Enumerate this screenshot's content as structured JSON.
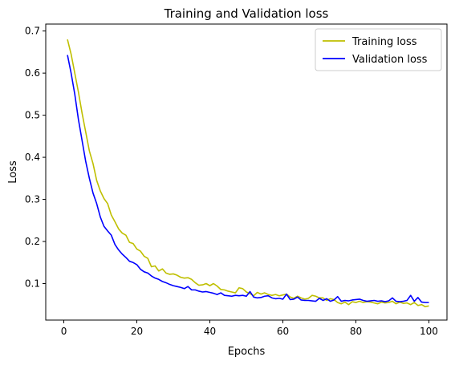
{
  "chart_data": {
    "type": "line",
    "title": "Training and Validation loss",
    "xlabel": "Epochs",
    "ylabel": "Loss",
    "xlim": [
      -4.95,
      104.95
    ],
    "ylim": [
      0.0133,
      0.7165
    ],
    "xticks": [
      0,
      20,
      40,
      60,
      80,
      100
    ],
    "yticks": [
      0.1,
      0.2,
      0.3,
      0.4,
      0.5,
      0.6,
      0.7
    ],
    "grid": false,
    "legend_position": "top-right",
    "x": [
      1,
      2,
      3,
      4,
      5,
      6,
      7,
      8,
      9,
      10,
      11,
      12,
      13,
      14,
      15,
      16,
      17,
      18,
      19,
      20,
      21,
      22,
      23,
      24,
      25,
      26,
      27,
      28,
      29,
      30,
      31,
      32,
      33,
      34,
      35,
      36,
      37,
      38,
      39,
      40,
      41,
      42,
      43,
      44,
      45,
      46,
      47,
      48,
      49,
      50,
      51,
      52,
      53,
      54,
      55,
      56,
      57,
      58,
      59,
      60,
      61,
      62,
      63,
      64,
      65,
      66,
      67,
      68,
      69,
      70,
      71,
      72,
      73,
      74,
      75,
      76,
      77,
      78,
      79,
      80,
      81,
      82,
      83,
      84,
      85,
      86,
      87,
      88,
      89,
      90,
      91,
      92,
      93,
      94,
      95,
      96,
      97,
      98,
      99,
      100
    ],
    "series": [
      {
        "name": "Training loss",
        "color": "#bfbf00",
        "values": [
          0.68,
          0.645,
          0.6,
          0.555,
          0.505,
          0.46,
          0.415,
          0.385,
          0.345,
          0.32,
          0.302,
          0.29,
          0.263,
          0.247,
          0.23,
          0.22,
          0.215,
          0.198,
          0.195,
          0.182,
          0.177,
          0.165,
          0.16,
          0.14,
          0.142,
          0.13,
          0.135,
          0.125,
          0.122,
          0.123,
          0.12,
          0.115,
          0.113,
          0.114,
          0.11,
          0.102,
          0.096,
          0.097,
          0.1,
          0.095,
          0.1,
          0.094,
          0.086,
          0.085,
          0.082,
          0.08,
          0.078,
          0.09,
          0.088,
          0.08,
          0.076,
          0.071,
          0.079,
          0.075,
          0.078,
          0.074,
          0.072,
          0.074,
          0.071,
          0.073,
          0.075,
          0.068,
          0.065,
          0.07,
          0.066,
          0.063,
          0.065,
          0.072,
          0.07,
          0.066,
          0.066,
          0.06,
          0.064,
          0.062,
          0.055,
          0.052,
          0.056,
          0.05,
          0.057,
          0.055,
          0.058,
          0.055,
          0.057,
          0.056,
          0.054,
          0.052,
          0.056,
          0.054,
          0.055,
          0.058,
          0.052,
          0.056,
          0.053,
          0.054,
          0.05,
          0.055,
          0.048,
          0.05,
          0.045,
          0.047
        ]
      },
      {
        "name": "Validation loss",
        "color": "#0000ff",
        "values": [
          0.643,
          0.6,
          0.55,
          0.49,
          0.44,
          0.39,
          0.35,
          0.315,
          0.29,
          0.258,
          0.236,
          0.225,
          0.215,
          0.193,
          0.18,
          0.17,
          0.162,
          0.153,
          0.15,
          0.145,
          0.134,
          0.128,
          0.125,
          0.118,
          0.113,
          0.11,
          0.105,
          0.102,
          0.098,
          0.095,
          0.093,
          0.091,
          0.088,
          0.093,
          0.085,
          0.085,
          0.082,
          0.08,
          0.081,
          0.079,
          0.077,
          0.074,
          0.078,
          0.072,
          0.071,
          0.07,
          0.072,
          0.071,
          0.072,
          0.07,
          0.081,
          0.068,
          0.066,
          0.067,
          0.07,
          0.071,
          0.066,
          0.064,
          0.065,
          0.063,
          0.075,
          0.062,
          0.063,
          0.068,
          0.061,
          0.06,
          0.06,
          0.059,
          0.058,
          0.065,
          0.06,
          0.064,
          0.058,
          0.061,
          0.069,
          0.058,
          0.06,
          0.059,
          0.061,
          0.062,
          0.063,
          0.06,
          0.058,
          0.059,
          0.06,
          0.058,
          0.059,
          0.057,
          0.059,
          0.066,
          0.058,
          0.057,
          0.058,
          0.06,
          0.072,
          0.058,
          0.067,
          0.056,
          0.055,
          0.055
        ]
      }
    ]
  }
}
